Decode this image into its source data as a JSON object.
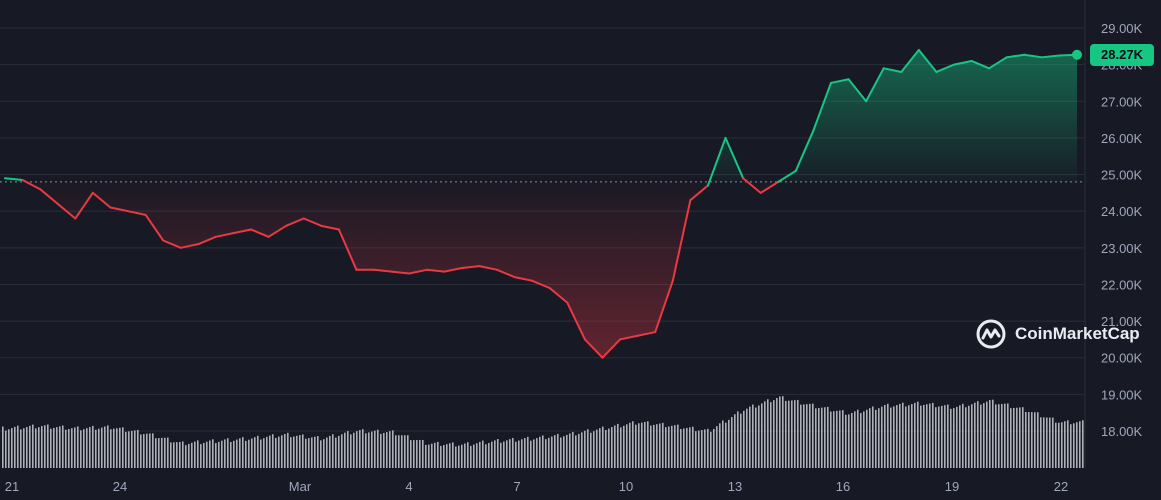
{
  "brand": {
    "name": "CoinMarketCap",
    "logo_icon": "coinmarketcap-logo-icon"
  },
  "current_price_label": "28.27K",
  "colors": {
    "up": "#16c784",
    "down": "#ea3943",
    "background": "#171924",
    "volume": "#c9cbd2",
    "baseline": "#a1a7bb"
  },
  "chart_data": {
    "type": "line",
    "title": "",
    "xlabel": "",
    "ylabel": "",
    "x_tick_labels": [
      "21",
      "24",
      "Mar",
      "4",
      "7",
      "10",
      "13",
      "16",
      "19",
      "22"
    ],
    "y_tick_labels": [
      "29.00K",
      "28.00K",
      "27.00K",
      "26.00K",
      "25.00K",
      "24.00K",
      "23.00K",
      "22.00K",
      "21.00K",
      "20.00K",
      "19.00K",
      "18.00K"
    ],
    "ylim": [
      17000,
      29500
    ],
    "baseline": 24800,
    "grid": true,
    "series": [
      {
        "x": [
          0,
          0.5,
          1,
          1.5,
          2,
          2.5,
          3,
          3.5,
          4,
          4.5,
          5,
          5.5,
          6,
          6.5,
          7,
          7.5,
          8,
          8.5,
          9,
          9.5,
          10,
          10.5,
          11,
          11.5,
          12,
          12.5,
          13,
          13.5,
          14,
          14.5,
          15,
          15.5,
          16,
          16.5,
          17,
          17.5,
          18,
          18.5,
          19,
          19.5,
          20,
          20.5,
          21,
          21.5,
          22,
          22.5,
          23,
          23.5,
          24,
          24.5,
          25,
          25.5,
          26,
          26.5,
          27,
          27.5,
          28,
          28.5,
          29,
          29.5,
          30,
          30.5
        ],
        "values": [
          24900,
          24850,
          24600,
          24200,
          23800,
          24500,
          24100,
          24000,
          23900,
          23200,
          23000,
          23100,
          23300,
          23400,
          23500,
          23300,
          23600,
          23800,
          23600,
          23500,
          22400,
          22400,
          22350,
          22300,
          22400,
          22350,
          22450,
          22500,
          22400,
          22200,
          22100,
          21900,
          21500,
          20500,
          20000,
          20500,
          20600,
          20700,
          22100,
          24300,
          24700,
          26000,
          24900,
          24500,
          24800,
          25100,
          26200,
          27500,
          27600,
          27000,
          27900,
          27800,
          28400,
          27800,
          28000,
          28100,
          27900,
          28200,
          28270,
          28200,
          28250,
          28270
        ]
      }
    ],
    "volume": [
      {
        "x": [
          0,
          1,
          2,
          3,
          4,
          5,
          6,
          7,
          8,
          9,
          10,
          11,
          12,
          13,
          14,
          15,
          16,
          17,
          18,
          19,
          20,
          21,
          22,
          23,
          24,
          25,
          26,
          27,
          28,
          29,
          30
        ],
        "values": [
          30,
          32,
          30,
          31,
          26,
          18,
          20,
          22,
          25,
          22,
          28,
          27,
          18,
          17,
          20,
          22,
          25,
          30,
          35,
          32,
          28,
          45,
          55,
          48,
          42,
          48,
          50,
          47,
          52,
          45,
          35
        ]
      }
    ]
  }
}
